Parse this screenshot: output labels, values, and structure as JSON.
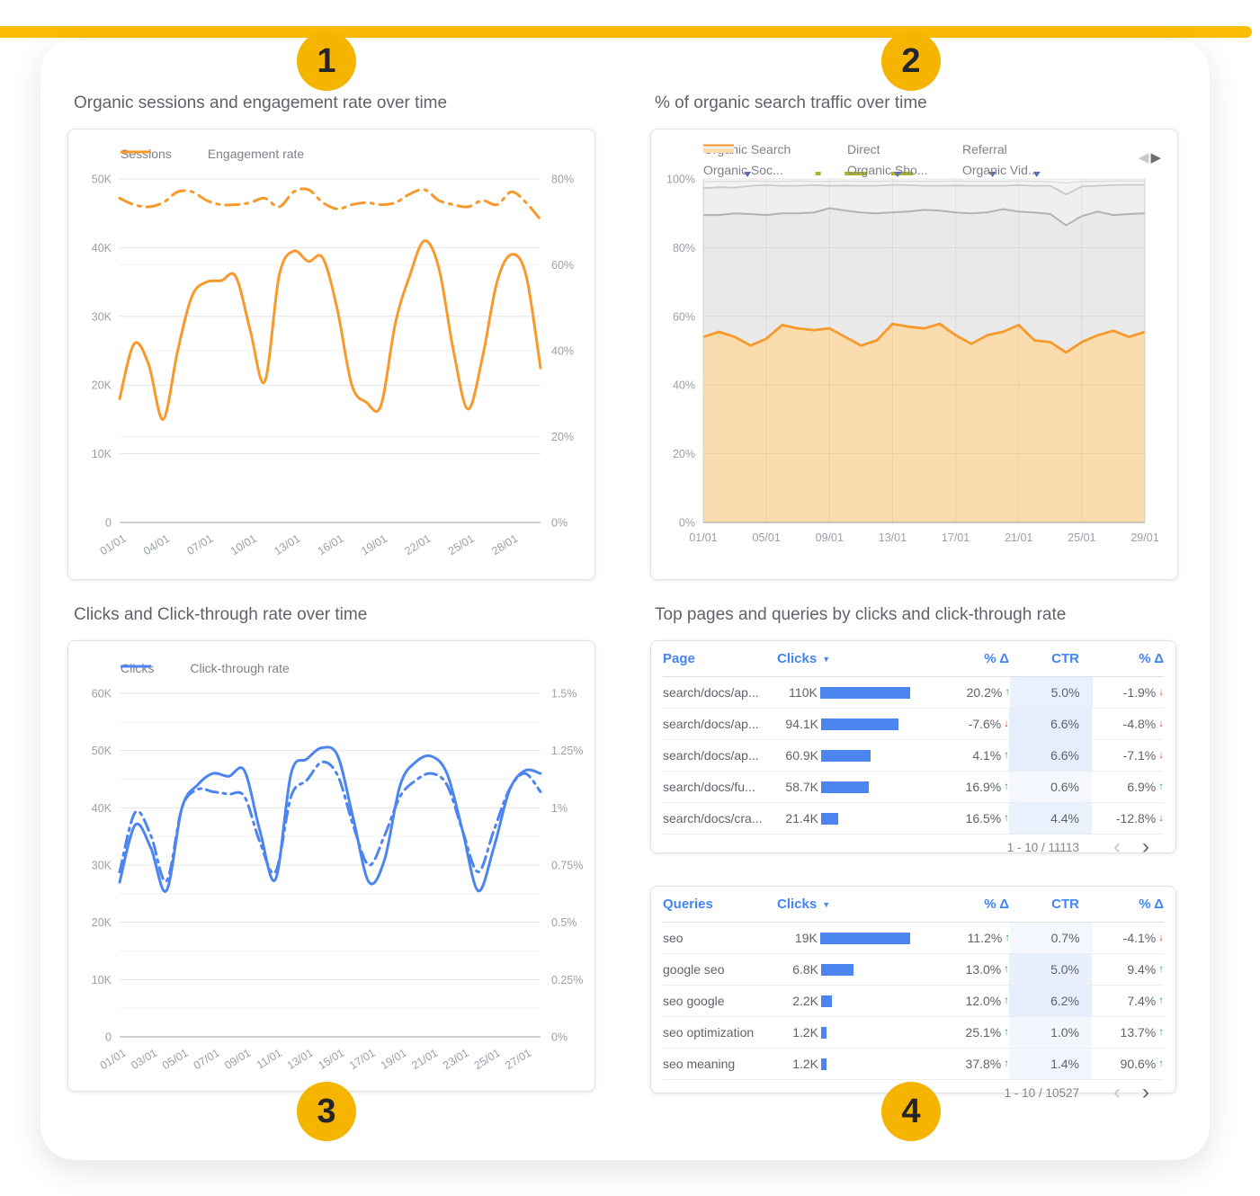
{
  "badges": [
    "1",
    "2",
    "3",
    "4"
  ],
  "colors": {
    "gold_line": "#FBBC04",
    "badge_gold": "#F4B400",
    "orange": "#F8992C",
    "orange_fill": "#FBDCAE",
    "blue": "#4C84F0",
    "bar_blue": "#4C84F0",
    "header_blue": "#4285F4",
    "delta_up_green": "#34A853",
    "delta_down_red": "#EA4335"
  },
  "tables_section": {
    "title": "Top pages and queries by clicks and click-through rate"
  },
  "chart_data": [
    {
      "id": "organic-sessions",
      "type": "line",
      "title": "Organic sessions and engagement rate over time",
      "unit": "left values are thousands of sessions, right values are percent",
      "color": "#F8992C",
      "left_axis": {
        "min": 0,
        "max": 50,
        "tick_labels": [
          "0",
          "10K",
          "20K",
          "30K",
          "40K",
          "50K"
        ]
      },
      "right_axis": {
        "min": 0,
        "max": 80,
        "tick_labels": [
          "0%",
          "20%",
          "40%",
          "60%",
          "80%"
        ]
      },
      "x_tick_labels": [
        "01/01",
        "04/01",
        "07/01",
        "10/01",
        "13/01",
        "16/01",
        "19/01",
        "22/01",
        "25/01",
        "28/01"
      ],
      "legend_position": "top",
      "grid": true,
      "series": [
        {
          "name": "Sessions",
          "axis": "left",
          "style": "solid",
          "values": [
            18,
            26,
            23,
            15,
            25,
            33,
            35,
            35.2,
            35.8,
            28,
            20.5,
            36,
            39.5,
            38,
            38.5,
            31,
            20,
            17.5,
            17,
            29,
            36,
            41,
            37,
            25,
            16.5,
            24,
            35,
            39,
            36,
            22.5
          ]
        },
        {
          "name": "Engagement rate",
          "axis": "right",
          "style": "dash-dot",
          "values": [
            75.5,
            74,
            73.5,
            74.5,
            77,
            77,
            75,
            74,
            74,
            74.5,
            75.5,
            73.5,
            77,
            77.5,
            74.5,
            73,
            74,
            74.5,
            74,
            74.5,
            76.5,
            77.5,
            75,
            74,
            73.5,
            75,
            74,
            77,
            74.5,
            70.5
          ]
        }
      ]
    },
    {
      "id": "traffic-share",
      "type": "area",
      "title": "% of organic search traffic over time",
      "unit": "stacked share of traffic, percent; series values are cumulative upper boundaries",
      "ylim": [
        0,
        100
      ],
      "y_tick_labels": [
        "0%",
        "20%",
        "40%",
        "60%",
        "80%",
        "100%"
      ],
      "x_tick_labels": [
        "01/01",
        "05/01",
        "09/01",
        "13/01",
        "17/01",
        "21/01",
        "25/01",
        "29/01"
      ],
      "legend_position": "top",
      "grid": true,
      "series": [
        {
          "name": "Organic Search",
          "values": [
            54,
            55.5,
            54,
            51.5,
            53.5,
            57.5,
            56.5,
            56,
            56.5,
            54,
            51.5,
            53,
            57.8,
            57,
            56.5,
            57.8,
            54.5,
            52,
            54.5,
            55.5,
            57.5,
            53,
            52.5,
            49.5,
            52.5,
            54.5,
            55.8,
            54,
            55.5
          ]
        },
        {
          "name": "Direct",
          "values": [
            89.5,
            89.5,
            90,
            89.8,
            89.5,
            90,
            90,
            90.2,
            91.5,
            90.8,
            90.2,
            90,
            90.3,
            90.5,
            91,
            90.8,
            90.2,
            90,
            90.3,
            91.2,
            90.5,
            90.2,
            89.8,
            86.5,
            89.2,
            90.5,
            89.5,
            89.8,
            90
          ]
        },
        {
          "name": "Referral",
          "values": [
            97.3,
            97.6,
            97.5,
            98,
            98.2,
            98,
            98,
            98.2,
            98,
            98.1,
            98,
            98,
            98.3,
            98.2,
            98,
            98,
            98.1,
            98,
            98,
            98,
            98.2,
            98,
            98,
            95.5,
            97.8,
            98,
            98.2,
            98.3,
            98.3
          ]
        },
        {
          "name": "Organic Soc...",
          "values": [
            99.2,
            99.3,
            99.3,
            99.4,
            99.3,
            99.3,
            99.4,
            99.3,
            99.3,
            99.4,
            99.3,
            99.3,
            99.4,
            99.3,
            99.3,
            99.3,
            99.4,
            99.3,
            99.3,
            99.3,
            99.4,
            99.3,
            99.2,
            98.8,
            99.3,
            99.3,
            99.4,
            99.4,
            99.4
          ]
        },
        {
          "name": "Organic Sho...",
          "values": []
        },
        {
          "name": "Organic Vid...",
          "values": []
        }
      ],
      "markers": [
        {
          "shape": "triangle",
          "color": "#5368C4",
          "x_frac": 0.1
        },
        {
          "shape": "dot",
          "color": "#AFB42B",
          "x_frac": 0.26
        },
        {
          "shape": "dash",
          "color": "#AFB42B",
          "x_frac": 0.345,
          "w_frac": 0.05
        },
        {
          "shape": "dash",
          "color": "#AFB42B",
          "x_frac": 0.45,
          "w_frac": 0.05
        },
        {
          "shape": "triangle",
          "color": "#5368C4",
          "x_frac": 0.44
        },
        {
          "shape": "triangle",
          "color": "#5368C4",
          "x_frac": 0.655
        },
        {
          "shape": "triangle",
          "color": "#5368C4",
          "x_frac": 0.755
        }
      ]
    },
    {
      "id": "clicks-ctr",
      "type": "line",
      "title": "Clicks and Click-through rate over time",
      "unit": "left values are thousands of clicks, right values are percent",
      "color": "#4C84F0",
      "left_axis": {
        "min": 0,
        "max": 60,
        "tick_labels": [
          "0",
          "10K",
          "20K",
          "30K",
          "40K",
          "50K",
          "60K"
        ]
      },
      "right_axis": {
        "min": 0,
        "max": 1.5,
        "tick_labels": [
          "0%",
          "0.25%",
          "0.5%",
          "0.75%",
          "1%",
          "1.25%",
          "1.5%"
        ]
      },
      "x_tick_labels": [
        "01/01",
        "03/01",
        "05/01",
        "07/01",
        "09/01",
        "11/01",
        "13/01",
        "15/01",
        "17/01",
        "19/01",
        "21/01",
        "23/01",
        "25/01",
        "27/01"
      ],
      "legend_position": "top",
      "grid": true,
      "series": [
        {
          "name": "Clicks",
          "axis": "left",
          "style": "solid",
          "values": [
            27,
            37,
            33,
            25.5,
            40,
            44,
            46,
            45.5,
            46.5,
            36,
            27.5,
            46,
            48.5,
            50.5,
            49,
            38,
            27,
            31,
            44,
            48,
            49,
            46,
            36,
            25.5,
            33,
            43,
            46.5,
            46
          ]
        },
        {
          "name": "Click-through rate",
          "axis": "right",
          "style": "dash-dot",
          "values": [
            0.72,
            0.98,
            0.88,
            0.68,
            1.0,
            1.08,
            1.07,
            1.06,
            1.05,
            0.85,
            0.72,
            1.05,
            1.12,
            1.2,
            1.14,
            0.92,
            0.75,
            0.88,
            1.05,
            1.12,
            1.15,
            1.1,
            0.9,
            0.72,
            0.9,
            1.08,
            1.15,
            1.07
          ]
        }
      ]
    },
    {
      "id": "top-pages",
      "type": "table",
      "headers": [
        "Page",
        "Clicks",
        "% Δ",
        "CTR",
        "% Δ"
      ],
      "sorted_by": "Clicks",
      "rows": [
        {
          "label": "search/docs/ap...",
          "clicks_label": "110K",
          "clicks_value": 110000,
          "delta_clicks": {
            "text": "20.2%",
            "dir": "up"
          },
          "ctr": "5.0%",
          "ctr_value": 5.0,
          "delta_ctr": {
            "text": "-1.9%",
            "dir": "down"
          }
        },
        {
          "label": "search/docs/ap...",
          "clicks_label": "94.1K",
          "clicks_value": 94100,
          "delta_clicks": {
            "text": "-7.6%",
            "dir": "down"
          },
          "ctr": "6.6%",
          "ctr_value": 6.6,
          "delta_ctr": {
            "text": "-4.8%",
            "dir": "down"
          }
        },
        {
          "label": "search/docs/ap...",
          "clicks_label": "60.9K",
          "clicks_value": 60900,
          "delta_clicks": {
            "text": "4.1%",
            "dir": "up"
          },
          "ctr": "6.6%",
          "ctr_value": 6.6,
          "delta_ctr": {
            "text": "-7.1%",
            "dir": "down"
          }
        },
        {
          "label": "search/docs/fu...",
          "clicks_label": "58.7K",
          "clicks_value": 58700,
          "delta_clicks": {
            "text": "16.9%",
            "dir": "up"
          },
          "ctr": "0.6%",
          "ctr_value": 0.6,
          "delta_ctr": {
            "text": "6.9%",
            "dir": "up"
          }
        },
        {
          "label": "search/docs/cra...",
          "clicks_label": "21.4K",
          "clicks_value": 21400,
          "delta_clicks": {
            "text": "16.5%",
            "dir": "up"
          },
          "ctr": "4.4%",
          "ctr_value": 4.4,
          "delta_ctr": {
            "text": "-12.8%",
            "dir": "down"
          }
        }
      ],
      "footer": {
        "range": "1 - 10 / 11113"
      }
    },
    {
      "id": "top-queries",
      "type": "table",
      "headers": [
        "Queries",
        "Clicks",
        "% Δ",
        "CTR",
        "% Δ"
      ],
      "sorted_by": "Clicks",
      "rows": [
        {
          "label": "seo",
          "clicks_label": "19K",
          "clicks_value": 19000,
          "delta_clicks": {
            "text": "11.2%",
            "dir": "up"
          },
          "ctr": "0.7%",
          "ctr_value": 0.7,
          "delta_ctr": {
            "text": "-4.1%",
            "dir": "down"
          }
        },
        {
          "label": "google seo",
          "clicks_label": "6.8K",
          "clicks_value": 6800,
          "delta_clicks": {
            "text": "13.0%",
            "dir": "up"
          },
          "ctr": "5.0%",
          "ctr_value": 5.0,
          "delta_ctr": {
            "text": "9.4%",
            "dir": "up"
          }
        },
        {
          "label": "seo google",
          "clicks_label": "2.2K",
          "clicks_value": 2200,
          "delta_clicks": {
            "text": "12.0%",
            "dir": "up"
          },
          "ctr": "6.2%",
          "ctr_value": 6.2,
          "delta_ctr": {
            "text": "7.4%",
            "dir": "up"
          }
        },
        {
          "label": "seo optimization",
          "clicks_label": "1.2K",
          "clicks_value": 1200,
          "delta_clicks": {
            "text": "25.1%",
            "dir": "up"
          },
          "ctr": "1.0%",
          "ctr_value": 1.0,
          "delta_ctr": {
            "text": "13.7%",
            "dir": "up"
          }
        },
        {
          "label": "seo meaning",
          "clicks_label": "1.2K",
          "clicks_value": 1200,
          "delta_clicks": {
            "text": "37.8%",
            "dir": "up"
          },
          "ctr": "1.4%",
          "ctr_value": 1.4,
          "delta_ctr": {
            "text": "90.6%",
            "dir": "up"
          }
        }
      ],
      "footer": {
        "range": "1 - 10 / 10527"
      }
    }
  ]
}
